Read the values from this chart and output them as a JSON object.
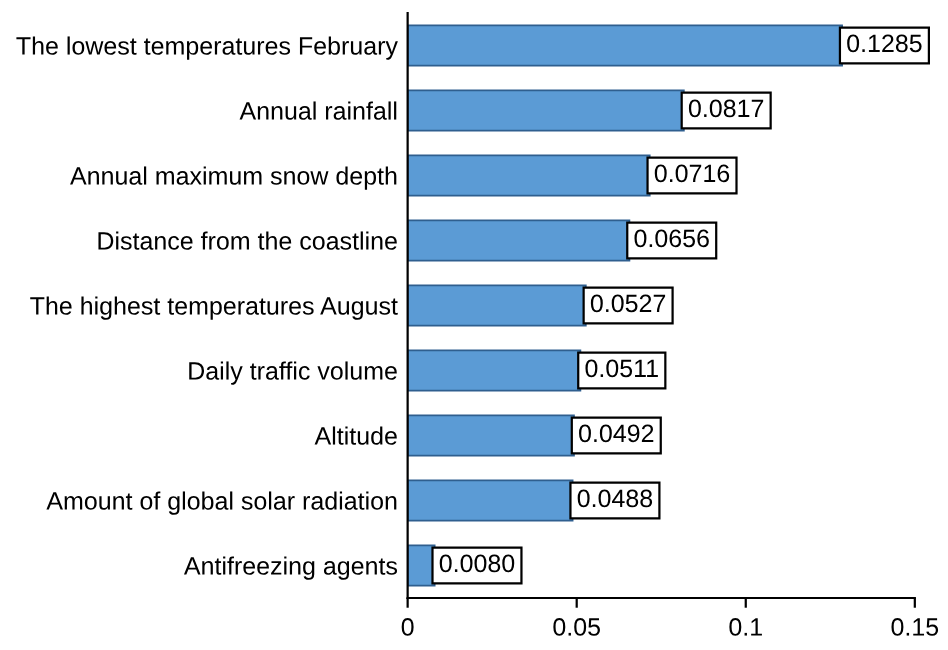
{
  "chart_data": {
    "type": "bar",
    "orientation": "horizontal",
    "categories": [
      "The lowest temperatures February",
      "Annual rainfall",
      "Annual maximum snow depth",
      "Distance from the coastline",
      "The highest temperatures August",
      "Daily traffic volume",
      "Altitude",
      "Amount of global solar radiation",
      "Antifreezing agents"
    ],
    "values": [
      0.1285,
      0.0817,
      0.0716,
      0.0656,
      0.0527,
      0.0511,
      0.0492,
      0.0488,
      0.008
    ],
    "value_labels": [
      "0.1285",
      "0.0817",
      "0.0716",
      "0.0656",
      "0.0527",
      "0.0511",
      "0.0492",
      "0.0488",
      "0.0080"
    ],
    "color": "#5b9bd5",
    "xlim": [
      0,
      0.15
    ],
    "xticks": [
      0,
      0.05,
      0.1,
      0.15
    ],
    "grid": false
  }
}
